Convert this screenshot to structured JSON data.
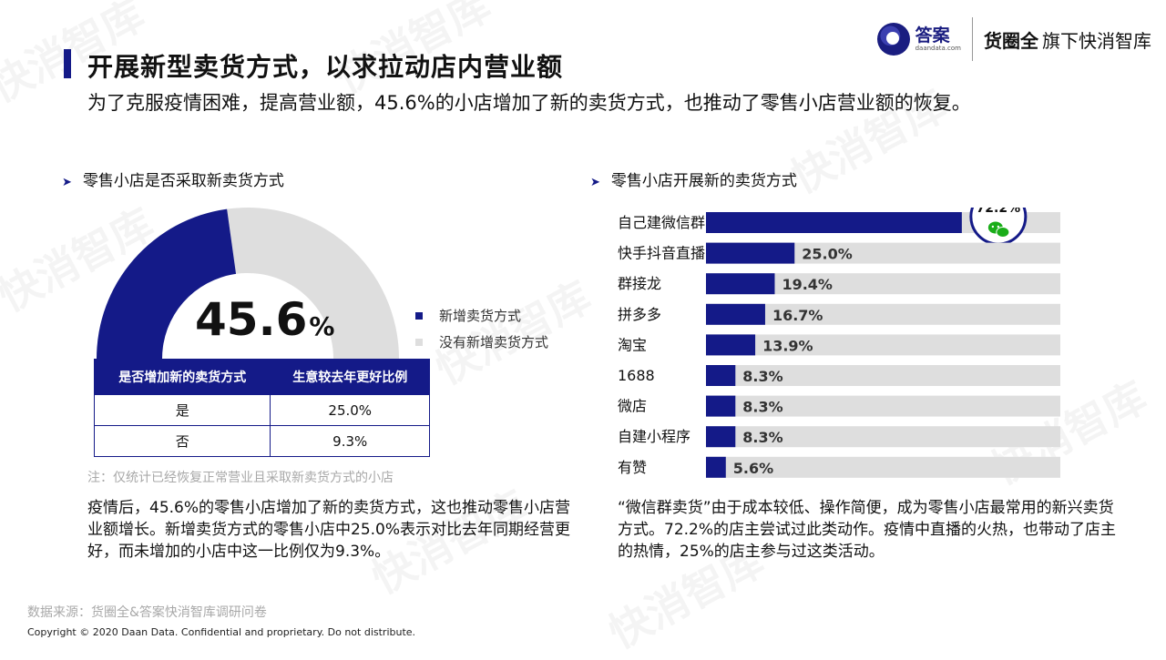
{
  "watermark": "快消智库",
  "header": {
    "logo_cn": "答案",
    "logo_domain": "daandata.com",
    "brand_bold": "货圈全",
    "brand_rest": "旗下快消智库"
  },
  "title": "开展新型卖货方式，以求拉动店内营业额",
  "subtitle": "为了克服疫情困难，提高营业额，45.6%的小店增加了新的卖货方式，也推动了零售小店营业额的恢复。",
  "left": {
    "heading": "零售小店是否采取新卖货方式",
    "big_number": "45.6",
    "big_unit": "%",
    "table": {
      "headers": [
        "是否增加新的卖货方式",
        "生意较去年更好比例"
      ],
      "rows": [
        [
          "是",
          "25.0%"
        ],
        [
          "否",
          "9.3%"
        ]
      ]
    },
    "note": "注：仅统计已经恢复正常营业且采取新卖货方式的小店",
    "paragraph": "疫情后，45.6%的零售小店增加了新的卖货方式，这也推动零售小店营业额增长。新增卖货方式的零售小店中25.0%表示对比去年同期经营更好，而未增加的小店中这一比例仅为9.3%。"
  },
  "right": {
    "heading": "零售小店开展新的卖货方式",
    "paragraph": "“微信群卖货”由于成本较低、操作简便，成为零售小店最常用的新兴卖货方式。72.2%的店主尝试过此类动作。疫情中直播的火热，也带动了店主的热情，25%的店主参与过这类活动。"
  },
  "footer": {
    "source": "数据来源：货圈全&答案快消智库调研问卷",
    "copyright": "Copyright © 2020 Daan Data. Confidential and proprietary. Do not distribute."
  },
  "colors": {
    "primary": "#141a88",
    "track": "#dedede",
    "wechat_green": "#1aad19"
  },
  "chart_data": [
    {
      "type": "pie",
      "variant": "half-donut",
      "series": [
        {
          "name": "新增卖货方式",
          "value": 45.6,
          "color": "#141a88"
        },
        {
          "name": "没有新增卖货方式",
          "value": 54.4,
          "color": "#dedede"
        }
      ],
      "legend_position": "right"
    },
    {
      "type": "bar",
      "orientation": "horizontal",
      "categories": [
        "自己建微信群",
        "快手抖音直播",
        "群接龙",
        "拼多多",
        "淘宝",
        "1688",
        "微店",
        "自建小程序",
        "有赞"
      ],
      "values": [
        72.2,
        25.0,
        19.4,
        16.7,
        13.9,
        8.3,
        8.3,
        8.3,
        5.6
      ],
      "labels": [
        "72.2%",
        "25.0%",
        "19.4%",
        "16.7%",
        "13.9%",
        "8.3%",
        "8.3%",
        "8.3%",
        "5.6%"
      ],
      "xlim": [
        0,
        100
      ],
      "highlight": {
        "category": "自己建微信群",
        "icon": "wechat-icon"
      }
    }
  ]
}
